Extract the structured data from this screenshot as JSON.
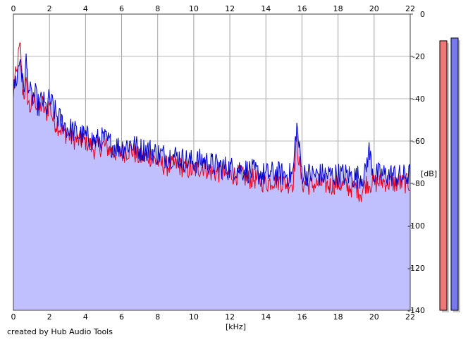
{
  "credit": "created by Hub Audio Tools",
  "chart_data": {
    "type": "line",
    "title": "",
    "xlabel": "[kHz]",
    "ylabel": "[dB]",
    "xlim": [
      0,
      22
    ],
    "ylim": [
      -140,
      0
    ],
    "x_ticks": [
      "0",
      "2",
      "4",
      "6",
      "8",
      "10",
      "12",
      "14",
      "16",
      "18",
      "20",
      "22"
    ],
    "y_ticks": [
      "0",
      "-20",
      "-40",
      "-60",
      "-80",
      "-100",
      "-120",
      "-140"
    ],
    "grid": true,
    "series": [
      {
        "color": "#e8001c",
        "x": [
          0,
          0.1,
          0.2,
          0.3,
          0.4,
          0.5,
          0.6,
          0.7,
          0.8,
          0.9,
          1.0,
          1.2,
          1.4,
          1.6,
          1.8,
          2.0,
          2.2,
          2.4,
          2.6,
          2.8,
          3.0,
          3.3,
          3.6,
          4.0,
          4.5,
          5.0,
          5.5,
          6.0,
          6.5,
          7.0,
          7.5,
          8.0,
          8.5,
          9.0,
          9.5,
          10.0,
          10.5,
          11.0,
          11.5,
          12.0,
          12.5,
          13.0,
          13.5,
          14.0,
          14.5,
          15.0,
          15.5,
          15.7,
          16.0,
          16.5,
          17.0,
          17.5,
          18.0,
          18.5,
          19.0,
          19.3,
          19.5,
          20.0,
          20.5,
          21.0,
          21.5,
          22.0
        ],
        "values": [
          -36,
          -30,
          -28,
          -18,
          -16,
          -35,
          -38,
          -33,
          -40,
          -45,
          -43,
          -40,
          -46,
          -42,
          -48,
          -42,
          -50,
          -52,
          -54,
          -56,
          -57,
          -59,
          -60,
          -60,
          -64,
          -62,
          -65,
          -66,
          -64,
          -68,
          -67,
          -70,
          -72,
          -71,
          -73,
          -74,
          -72,
          -75,
          -75,
          -76,
          -76,
          -78,
          -78,
          -80,
          -78,
          -80,
          -80,
          -60,
          -80,
          -81,
          -80,
          -81,
          -80,
          -82,
          -82,
          -85,
          -80,
          -80,
          -79,
          -80,
          -80,
          -80
        ]
      },
      {
        "color": "#0000cc",
        "x": [
          0,
          0.1,
          0.2,
          0.3,
          0.4,
          0.5,
          0.6,
          0.7,
          0.8,
          0.9,
          1.0,
          1.2,
          1.4,
          1.6,
          1.8,
          2.0,
          2.2,
          2.4,
          2.6,
          2.8,
          3.0,
          3.3,
          3.6,
          4.0,
          4.5,
          5.0,
          5.5,
          6.0,
          6.5,
          7.0,
          7.5,
          8.0,
          8.5,
          9.0,
          9.5,
          10.0,
          10.5,
          11.0,
          11.5,
          12.0,
          12.5,
          13.0,
          13.5,
          14.0,
          14.5,
          15.0,
          15.5,
          15.7,
          16.0,
          16.5,
          17.0,
          17.5,
          18.0,
          18.5,
          19.0,
          19.5,
          19.7,
          20.0,
          20.5,
          21.0,
          21.5,
          22.0
        ],
        "values": [
          -38,
          -32,
          -30,
          -24,
          -20,
          -33,
          -35,
          -22,
          -30,
          -36,
          -40,
          -38,
          -44,
          -40,
          -45,
          -40,
          -44,
          -48,
          -50,
          -52,
          -54,
          -55,
          -57,
          -58,
          -60,
          -59,
          -62,
          -63,
          -61,
          -64,
          -64,
          -66,
          -67,
          -67,
          -69,
          -70,
          -69,
          -71,
          -72,
          -73,
          -73,
          -74,
          -75,
          -76,
          -75,
          -76,
          -76,
          -52,
          -75,
          -76,
          -76,
          -76,
          -76,
          -76,
          -77,
          -76,
          -64,
          -76,
          -76,
          -76,
          -77,
          -76
        ]
      }
    ],
    "level_meters": [
      {
        "color": "#ee7777",
        "level": 0.96
      },
      {
        "color": "#7777ee",
        "level": 0.97
      }
    ]
  }
}
